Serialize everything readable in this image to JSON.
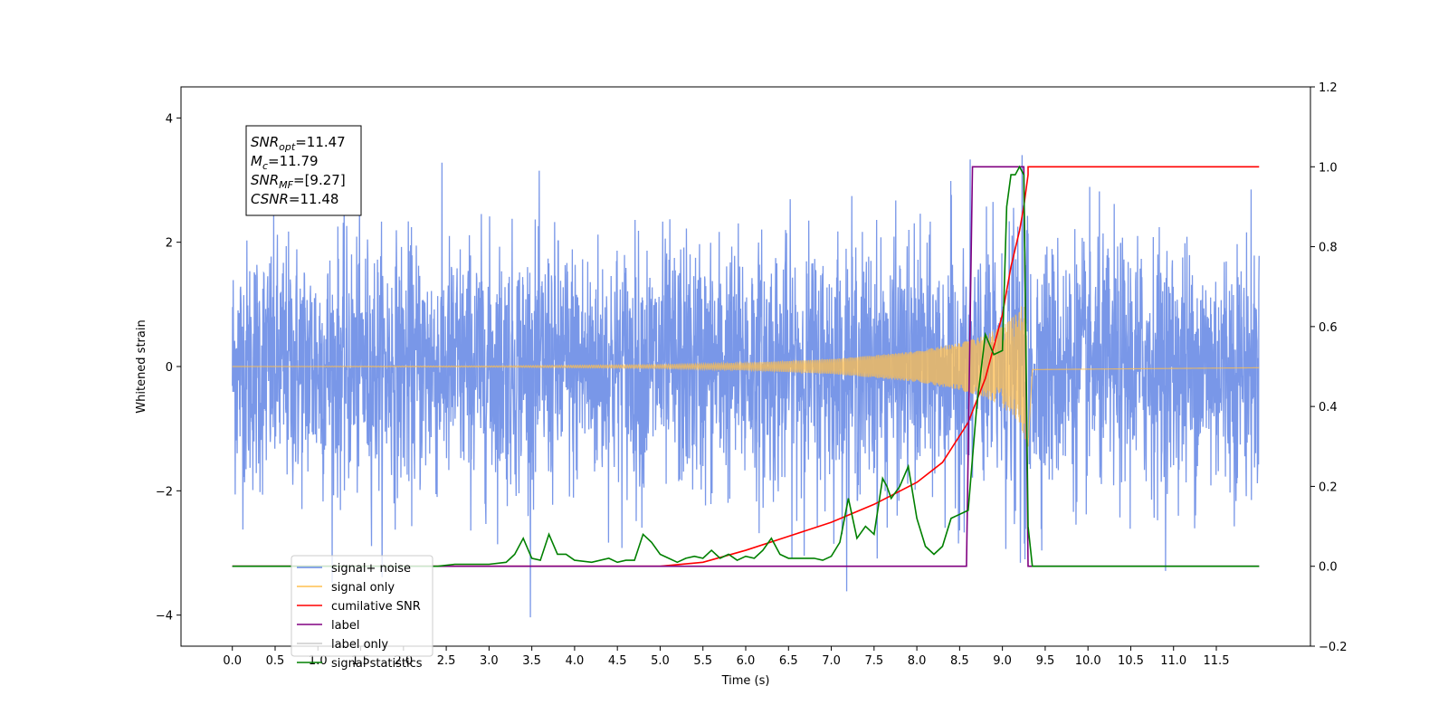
{
  "chart_data": {
    "type": "line",
    "xlabel": "Time (s)",
    "ylabel": "Whitened strain",
    "xlim": [
      -0.6,
      12.6
    ],
    "ylim": [
      -4.5,
      4.5
    ],
    "y2lim": [
      -0.2,
      1.2
    ],
    "xticks": [
      "0.0",
      "0.5",
      "1.0",
      "1.5",
      "2.0",
      "2.5",
      "3.0",
      "3.5",
      "4.0",
      "4.5",
      "5.0",
      "5.5",
      "6.0",
      "6.5",
      "7.0",
      "7.5",
      "8.0",
      "8.5",
      "9.0",
      "9.5",
      "10.0",
      "10.5",
      "11.0",
      "11.5"
    ],
    "yticks": [
      "-4",
      "-2",
      "0",
      "2",
      "4"
    ],
    "y2ticks": [
      "-0.2",
      "0.0",
      "0.2",
      "0.4",
      "0.6",
      "0.8",
      "1.0",
      "1.2"
    ],
    "annotation": {
      "lines": [
        {
          "sym": "SNR",
          "sub": "opt",
          "val": "=11.47"
        },
        {
          "sym": "M",
          "sub": "c",
          "val": "=11.79"
        },
        {
          "sym": "SNR",
          "sub": "MF",
          "val": "=[9.27]"
        },
        {
          "sym": "CSNR",
          "sub": "",
          "val": "=11.48"
        }
      ]
    },
    "legend": {
      "position": "lower-left",
      "entries": [
        {
          "label": "signal+ noise",
          "color": "#6a8ce6"
        },
        {
          "label": "signal only",
          "color": "#ffbf4f"
        },
        {
          "label": "cumilative SNR",
          "color": "#ff0000"
        },
        {
          "label": "label",
          "color": "#800080"
        },
        {
          "label": "label only",
          "color": "#cccccc"
        },
        {
          "label": "signal statistics",
          "color": "#008000"
        }
      ]
    },
    "series": [
      {
        "name": "signal+ noise",
        "axis": "left",
        "description_type": "noise",
        "x_range": [
          0,
          12
        ],
        "std": 1.0
      },
      {
        "name": "signal only",
        "axis": "left",
        "type": "chirp",
        "x_range": [
          0,
          12
        ],
        "merger_time": 9.3,
        "envelope": {
          "x": [
            0,
            3,
            5,
            6,
            7,
            7.5,
            8,
            8.5,
            8.8,
            9.0,
            9.2,
            9.3,
            9.35,
            12
          ],
          "y": [
            0,
            0.01,
            0.03,
            0.06,
            0.12,
            0.18,
            0.25,
            0.38,
            0.5,
            0.65,
            0.9,
            1.3,
            0.05,
            0.02
          ]
        }
      },
      {
        "name": "cumilative SNR",
        "axis": "right",
        "x": [
          0,
          5.0,
          5.5,
          6.0,
          6.5,
          7.0,
          7.5,
          8.0,
          8.3,
          8.6,
          8.8,
          9.0,
          9.1,
          9.2,
          9.25,
          9.3,
          9.3,
          12.0
        ],
        "y": [
          0,
          0.0,
          0.01,
          0.04,
          0.075,
          0.11,
          0.155,
          0.21,
          0.26,
          0.36,
          0.47,
          0.63,
          0.75,
          0.84,
          0.9,
          0.98,
          1.0,
          1.0
        ]
      },
      {
        "name": "label",
        "axis": "right",
        "x": [
          0,
          8.58,
          8.65,
          9.25,
          9.3,
          12.0
        ],
        "y": [
          0,
          0,
          1,
          1,
          0,
          0
        ]
      },
      {
        "name": "signal statistics",
        "axis": "right",
        "x": [
          0,
          2.4,
          2.6,
          3.0,
          3.2,
          3.3,
          3.4,
          3.5,
          3.6,
          3.7,
          3.8,
          3.9,
          4.0,
          4.2,
          4.4,
          4.5,
          4.6,
          4.7,
          4.8,
          4.9,
          5.0,
          5.1,
          5.2,
          5.3,
          5.4,
          5.5,
          5.6,
          5.7,
          5.8,
          5.9,
          6.0,
          6.1,
          6.2,
          6.3,
          6.4,
          6.5,
          6.6,
          6.7,
          6.8,
          6.9,
          7.0,
          7.1,
          7.2,
          7.3,
          7.4,
          7.5,
          7.6,
          7.65,
          7.7,
          7.8,
          7.9,
          8.0,
          8.1,
          8.2,
          8.3,
          8.4,
          8.5,
          8.6,
          8.7,
          8.8,
          8.9,
          9.0,
          9.05,
          9.1,
          9.15,
          9.2,
          9.25,
          9.3,
          9.35,
          12.0
        ],
        "y": [
          0,
          0,
          0.005,
          0.005,
          0.01,
          0.03,
          0.07,
          0.02,
          0.015,
          0.08,
          0.03,
          0.03,
          0.015,
          0.01,
          0.02,
          0.01,
          0.015,
          0.015,
          0.08,
          0.06,
          0.03,
          0.02,
          0.01,
          0.02,
          0.025,
          0.02,
          0.04,
          0.02,
          0.03,
          0.015,
          0.025,
          0.02,
          0.04,
          0.07,
          0.03,
          0.02,
          0.02,
          0.02,
          0.02,
          0.015,
          0.025,
          0.06,
          0.17,
          0.07,
          0.1,
          0.08,
          0.22,
          0.2,
          0.17,
          0.2,
          0.25,
          0.12,
          0.05,
          0.03,
          0.05,
          0.12,
          0.13,
          0.14,
          0.4,
          0.58,
          0.53,
          0.54,
          0.9,
          0.98,
          0.98,
          1.0,
          0.98,
          0.1,
          0.0,
          0.0
        ]
      }
    ]
  }
}
